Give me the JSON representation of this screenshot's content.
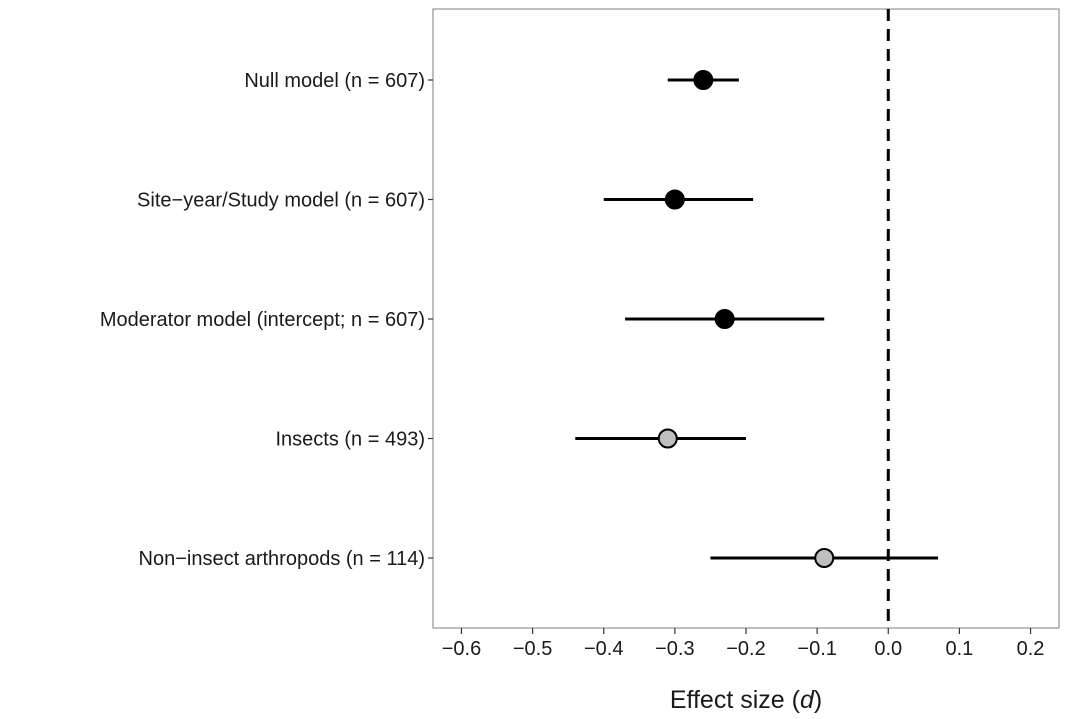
{
  "chart_data": {
    "type": "forest",
    "xlabel": {
      "prefix": "Effect size (",
      "italic": "d",
      "suffix": ")"
    },
    "xlim": [
      -0.64,
      0.24
    ],
    "xticks": [
      -0.6,
      -0.5,
      -0.4,
      -0.3,
      -0.2,
      -0.1,
      0.0,
      0.1,
      0.2
    ],
    "xtick_labels": [
      "−0.6",
      "−0.5",
      "−0.4",
      "−0.3",
      "−0.2",
      "−0.1",
      "0.0",
      "0.1",
      "0.2"
    ],
    "reference_line": {
      "x": 0.0,
      "style": "dashed"
    },
    "grid": false,
    "rows": [
      {
        "label": "Null model (n = 607)",
        "estimate": -0.26,
        "lower": -0.31,
        "upper": -0.21,
        "fill": "#000000"
      },
      {
        "label": "Site−year/Study model (n = 607)",
        "estimate": -0.3,
        "lower": -0.4,
        "upper": -0.19,
        "fill": "#000000"
      },
      {
        "label": "Moderator model (intercept; n = 607)",
        "estimate": -0.23,
        "lower": -0.37,
        "upper": -0.09,
        "fill": "#000000"
      },
      {
        "label": "Insects (n = 493)",
        "estimate": -0.31,
        "lower": -0.44,
        "upper": -0.2,
        "fill": "#bebebe"
      },
      {
        "label": "Non−insect arthropods (n = 114)",
        "estimate": -0.09,
        "lower": -0.25,
        "upper": 0.07,
        "fill": "#bebebe"
      }
    ]
  }
}
